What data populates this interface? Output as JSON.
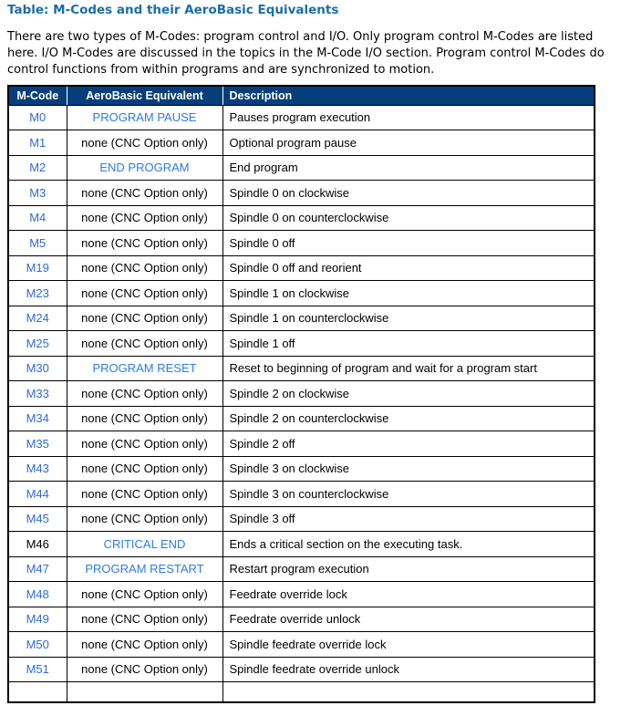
{
  "page": {
    "title": "Table: M-Codes and their AeroBasic Equivalents",
    "intro": "There are two types of M-Codes: program control and I/O. Only program control M-Codes are listed here. I/O M-Codes are discussed in the topics in the M-Code I/O section. Program control M-Codes do control functions from within programs and are synchronized to motion."
  },
  "colors": {
    "title_color": "#1A6FA8",
    "header_bg": "#063E7C",
    "header_text": "#FFFFFF",
    "code_link": "#3069D9",
    "equiv_link": "#2E7CDF",
    "body_text": "#000000",
    "border_color": "#000000"
  },
  "table": {
    "headers": [
      "M-Code",
      "AeroBasic Equivalent",
      "Description"
    ],
    "rows": [
      {
        "code": "M0",
        "code_link": true,
        "equiv": "PROGRAM PAUSE",
        "equiv_link": true,
        "desc": "Pauses program execution"
      },
      {
        "code": "M1",
        "code_link": true,
        "equiv": "none (CNC Option only)",
        "equiv_link": false,
        "desc": "Optional program pause"
      },
      {
        "code": "M2",
        "code_link": true,
        "equiv": "END PROGRAM",
        "equiv_link": true,
        "desc": "End program"
      },
      {
        "code": "M3",
        "code_link": true,
        "equiv": "none (CNC Option only)",
        "equiv_link": false,
        "desc": "Spindle 0 on clockwise"
      },
      {
        "code": "M4",
        "code_link": true,
        "equiv": "none (CNC Option only)",
        "equiv_link": false,
        "desc": "Spindle 0 on counterclockwise"
      },
      {
        "code": "M5",
        "code_link": true,
        "equiv": "none (CNC Option only)",
        "equiv_link": false,
        "desc": "Spindle 0 off"
      },
      {
        "code": "M19",
        "code_link": true,
        "equiv": "none (CNC Option only)",
        "equiv_link": false,
        "desc": "Spindle 0 off and reorient"
      },
      {
        "code": "M23",
        "code_link": true,
        "equiv": "none (CNC Option only)",
        "equiv_link": false,
        "desc": "Spindle 1 on clockwise"
      },
      {
        "code": "M24",
        "code_link": true,
        "equiv": "none (CNC Option only)",
        "equiv_link": false,
        "desc": "Spindle 1 on counterclockwise"
      },
      {
        "code": "M25",
        "code_link": true,
        "equiv": "none (CNC Option only)",
        "equiv_link": false,
        "desc": "Spindle 1 off"
      },
      {
        "code": "M30",
        "code_link": true,
        "equiv": "PROGRAM RESET",
        "equiv_link": true,
        "desc": "Reset to beginning of program and wait for a program start"
      },
      {
        "code": "M33",
        "code_link": true,
        "equiv": "none (CNC Option only)",
        "equiv_link": false,
        "desc": "Spindle 2 on clockwise"
      },
      {
        "code": "M34",
        "code_link": true,
        "equiv": "none (CNC Option only)",
        "equiv_link": false,
        "desc": "Spindle 2 on counterclockwise"
      },
      {
        "code": "M35",
        "code_link": true,
        "equiv": "none (CNC Option only)",
        "equiv_link": false,
        "desc": "Spindle 2 off"
      },
      {
        "code": "M43",
        "code_link": true,
        "equiv": "none (CNC Option only)",
        "equiv_link": false,
        "desc": "Spindle 3 on clockwise"
      },
      {
        "code": "M44",
        "code_link": true,
        "equiv": "none (CNC Option only)",
        "equiv_link": false,
        "desc": "Spindle 3 on counterclockwise"
      },
      {
        "code": "M45",
        "code_link": true,
        "equiv": "none (CNC Option only)",
        "equiv_link": false,
        "desc": "Spindle 3 off"
      },
      {
        "code": "M46",
        "code_link": false,
        "equiv": "CRITICAL END",
        "equiv_link": true,
        "desc": "Ends a critical section on the executing task."
      },
      {
        "code": "M47",
        "code_link": true,
        "equiv": "PROGRAM RESTART",
        "equiv_link": true,
        "desc": "Restart program execution"
      },
      {
        "code": "M48",
        "code_link": true,
        "equiv": "none (CNC Option only)",
        "equiv_link": false,
        "desc": "Feedrate override lock"
      },
      {
        "code": "M49",
        "code_link": true,
        "equiv": "none (CNC Option only)",
        "equiv_link": false,
        "desc": "Feedrate override unlock"
      },
      {
        "code": "M50",
        "code_link": true,
        "equiv": "none (CNC Option only)",
        "equiv_link": false,
        "desc": "Spindle feedrate override lock"
      },
      {
        "code": "M51",
        "code_link": true,
        "equiv": "none (CNC Option only)",
        "equiv_link": false,
        "desc": "Spindle feedrate override unlock"
      }
    ]
  }
}
